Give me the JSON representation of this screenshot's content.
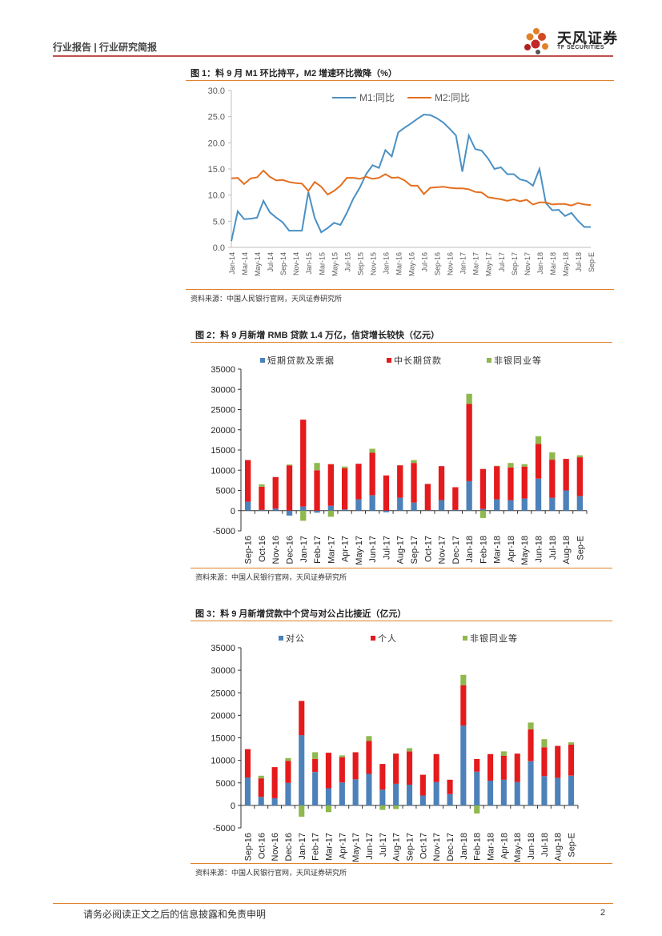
{
  "header": {
    "left": "行业报告 | 行业研究简报",
    "logo_cn": "天风证券",
    "logo_en": "TF SECURITIES"
  },
  "colors": {
    "accent": "#e0822a",
    "m1": "#4a90c4",
    "m2": "#e46f1f",
    "blue": "#4d81b9",
    "red": "#e41a1c",
    "green": "#8fb84e"
  },
  "fig1": {
    "title": "图 1：料 9 月 M1 环比持平，M2 增速环比微降（%）",
    "source": "资料来源：中国人民银行官网，天风证券研究所",
    "chart_data": {
      "type": "line",
      "ylim": [
        0,
        30
      ],
      "yticks": [
        "0.0",
        "5.0",
        "10.0",
        "15.0",
        "20.0",
        "25.0",
        "30.0"
      ],
      "xticks": [
        "Jan-14",
        "Mar-14",
        "May-14",
        "Jul-14",
        "Sep-14",
        "Nov-14",
        "Jan-15",
        "Mar-15",
        "May-15",
        "Jul-15",
        "Sep-15",
        "Nov-15",
        "Jan-16",
        "Mar-16",
        "May-16",
        "Jul-16",
        "Sep-16",
        "Nov-16",
        "Jan-17",
        "Mar-17",
        "May-17",
        "Jul-17",
        "Sep-17",
        "Nov-17",
        "Jan-18",
        "Mar-18",
        "May-18",
        "Jul-18",
        "Sep-E"
      ],
      "series": [
        {
          "name": "M1:同比",
          "values": [
            1.2,
            6.9,
            5.4,
            5.5,
            5.7,
            8.9,
            6.7,
            5.7,
            4.8,
            3.2,
            3.2,
            3.2,
            10.6,
            5.6,
            2.9,
            3.7,
            4.7,
            4.3,
            6.6,
            9.3,
            11.4,
            14.0,
            15.7,
            15.2,
            18.6,
            17.4,
            22.0,
            22.9,
            23.7,
            24.6,
            25.4,
            25.3,
            24.7,
            23.9,
            22.7,
            21.4,
            14.5,
            21.4,
            18.8,
            18.5,
            17.0,
            15.0,
            15.3,
            14.0,
            14.0,
            13.0,
            12.7,
            11.8,
            15.0,
            8.5,
            7.1,
            7.2,
            6.0,
            6.6,
            5.1,
            3.9,
            3.9
          ]
        },
        {
          "name": "M2:同比",
          "values": [
            13.2,
            13.3,
            12.1,
            13.2,
            13.4,
            14.7,
            13.5,
            12.8,
            12.9,
            12.5,
            12.3,
            12.2,
            10.8,
            12.5,
            11.6,
            10.1,
            10.8,
            11.8,
            13.3,
            13.3,
            13.1,
            13.5,
            13.1,
            13.3,
            14.0,
            13.3,
            13.4,
            12.8,
            11.8,
            11.8,
            10.2,
            11.4,
            11.5,
            11.6,
            11.4,
            11.3,
            11.3,
            11.1,
            10.6,
            10.5,
            9.6,
            9.4,
            9.2,
            8.9,
            9.2,
            8.8,
            9.1,
            8.2,
            8.6,
            8.6,
            8.2,
            8.3,
            8.3,
            8.0,
            8.5,
            8.2,
            8.1
          ]
        }
      ]
    }
  },
  "fig2": {
    "title": "图 2：料 9 月新增 RMB 贷款 1.4 万亿，信贷增长较快（亿元）",
    "source": "资料来源：中国人民银行官网，天风证券研究所",
    "chart_data": {
      "type": "bar",
      "ylim": [
        -5000,
        35000
      ],
      "yticks": [
        "-5000",
        "0",
        "5000",
        "10000",
        "15000",
        "20000",
        "25000",
        "30000",
        "35000"
      ],
      "categories": [
        "Sep-16",
        "Oct-16",
        "Nov-16",
        "Dec-16",
        "Jan-17",
        "Feb-17",
        "Mar-17",
        "Apr-17",
        "May-17",
        "Jun-17",
        "Jul-17",
        "Aug-17",
        "Sep-17",
        "Oct-17",
        "Nov-17",
        "Dec-17",
        "Jan-18",
        "Feb-18",
        "Mar-18",
        "Apr-18",
        "May-18",
        "Jun-18",
        "Jul-18",
        "Aug-18",
        "Sep-E"
      ],
      "series": [
        {
          "name": "短期贷款及票据",
          "values": [
            2200,
            200,
            500,
            -1200,
            1000,
            -500,
            1200,
            300,
            2800,
            3800,
            -400,
            3200,
            2000,
            100,
            2600,
            200,
            7300,
            400,
            2800,
            2600,
            3000,
            7900,
            3200,
            5000,
            3600
          ]
        },
        {
          "name": "中长期贷款",
          "values": [
            10300,
            5700,
            7800,
            11200,
            21500,
            10000,
            10300,
            10200,
            8800,
            10500,
            8700,
            8000,
            9800,
            6500,
            8400,
            5600,
            19100,
            9900,
            8200,
            8100,
            7900,
            8600,
            9400,
            7800,
            9600
          ]
        },
        {
          "name": "非银同业等",
          "values": [
            0,
            600,
            0,
            200,
            -2500,
            1800,
            -1500,
            400,
            0,
            1000,
            0,
            0,
            700,
            0,
            0,
            0,
            2500,
            -1800,
            100,
            1100,
            600,
            1900,
            1800,
            0,
            500
          ]
        }
      ]
    }
  },
  "fig3": {
    "title": "图 3：料 9 月新增贷款中个贷与对公占比接近（亿元）",
    "source": "资料来源：中国人民银行官网，天风证券研究所",
    "chart_data": {
      "type": "bar",
      "ylim": [
        -5000,
        35000
      ],
      "yticks": [
        "-5000",
        "0",
        "5000",
        "10000",
        "15000",
        "20000",
        "25000",
        "30000",
        "35000"
      ],
      "categories": [
        "Sep-16",
        "Oct-16",
        "Nov-16",
        "Dec-16",
        "Jan-17",
        "Feb-17",
        "Mar-17",
        "Apr-17",
        "May-17",
        "Jun-17",
        "Jul-17",
        "Aug-17",
        "Sep-17",
        "Oct-17",
        "Nov-17",
        "Dec-17",
        "Jan-18",
        "Feb-18",
        "Mar-18",
        "Apr-18",
        "May-18",
        "Jun-18",
        "Jul-18",
        "Aug-18",
        "Sep-E"
      ],
      "series": [
        {
          "name": "对公",
          "values": [
            6200,
            1900,
            1600,
            5000,
            15600,
            7400,
            3800,
            5100,
            5800,
            7000,
            3500,
            4800,
            4600,
            2200,
            5200,
            2500,
            17700,
            7500,
            5500,
            5700,
            5200,
            9800,
            6500,
            6100,
            6600
          ]
        },
        {
          "name": "个人",
          "values": [
            6300,
            4100,
            6900,
            4900,
            7600,
            2900,
            7900,
            5600,
            6000,
            7300,
            5700,
            6700,
            7400,
            4600,
            6200,
            3200,
            9000,
            2800,
            5900,
            5300,
            6300,
            7100,
            6400,
            7100,
            6900
          ]
        },
        {
          "name": "非银同业等",
          "values": [
            0,
            600,
            0,
            600,
            -2500,
            1500,
            -1500,
            400,
            0,
            1100,
            -1000,
            -800,
            700,
            0,
            0,
            0,
            2300,
            -1800,
            0,
            1000,
            0,
            1500,
            1800,
            0,
            500
          ]
        }
      ]
    }
  },
  "footer": {
    "disclaimer": "请务必阅读正文之后的信息披露和免责申明",
    "page": "2"
  }
}
